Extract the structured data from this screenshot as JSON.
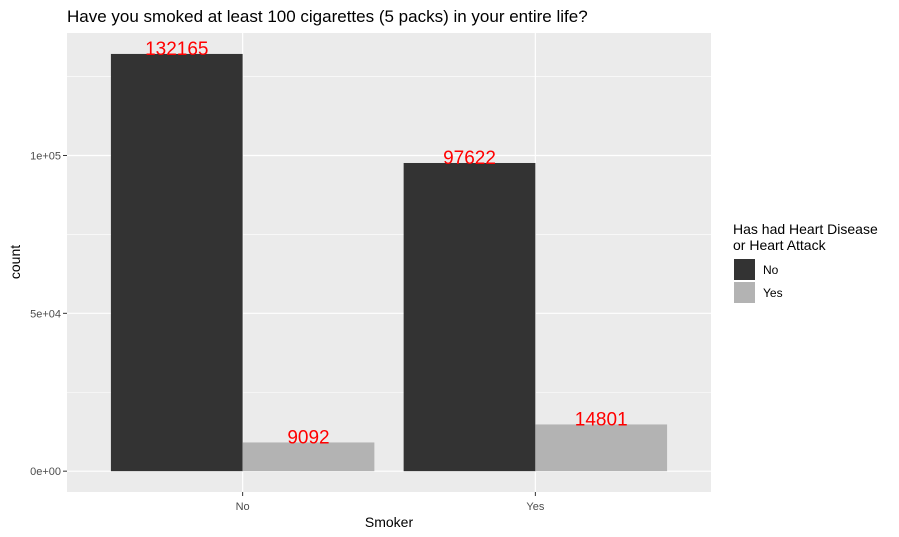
{
  "chart_data": {
    "type": "bar",
    "title": "Have you smoked at least 100 cigarettes (5 packs) in your entire life?",
    "xlabel": "Smoker",
    "ylabel": "count",
    "categories": [
      "No",
      "Yes"
    ],
    "series": [
      {
        "name": "No",
        "values": [
          132165,
          97622
        ],
        "color": "#333333"
      },
      {
        "name": "Yes",
        "values": [
          9092,
          14801
        ],
        "color": "#b3b3b3"
      }
    ],
    "y_ticks": [
      {
        "value": 0,
        "label": "0e+00"
      },
      {
        "value": 50000,
        "label": "5e+04"
      },
      {
        "value": 100000,
        "label": "1e+05"
      }
    ],
    "ylim": [
      -6600,
      138800
    ],
    "legend": {
      "title_line1": "Has had Heart Disease",
      "title_line2": "or Heart Attack",
      "placement": "right"
    },
    "data_label_color": "#ff0000",
    "panel_background": "#ebebeb",
    "grid": true
  }
}
